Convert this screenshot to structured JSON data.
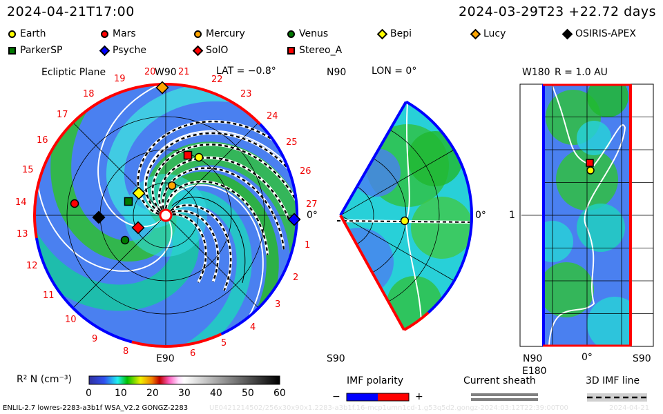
{
  "header": {
    "time": "2024-04-21T17:00",
    "run_info": "2024-03-29T23 +22.72 days"
  },
  "legend": [
    {
      "label": "Earth",
      "shape": "circle",
      "color": "#ffff00"
    },
    {
      "label": "Mars",
      "shape": "circle",
      "color": "#ff0000"
    },
    {
      "label": "Mercury",
      "shape": "circle",
      "color": "#ffa500"
    },
    {
      "label": "Venus",
      "shape": "circle",
      "color": "#007800"
    },
    {
      "label": "Bepi",
      "shape": "diamond",
      "color": "#ffff00"
    },
    {
      "label": "Lucy",
      "shape": "diamond",
      "color": "#ffa500"
    },
    {
      "label": "OSIRIS-APEX",
      "shape": "diamond",
      "color": "#000000"
    },
    {
      "label": "ParkerSP",
      "shape": "square",
      "color": "#007800"
    },
    {
      "label": "Psyche",
      "shape": "diamond",
      "color": "#0000ff"
    },
    {
      "label": "SolO",
      "shape": "diamond",
      "color": "#ff0000"
    },
    {
      "label": "Stereo_A",
      "shape": "square",
      "color": "#ff0000"
    }
  ],
  "ecliptic": {
    "title": "Ecliptic Plane",
    "top_label": "W90",
    "bottom_label": "E90",
    "lat": "LAT = −0.8°",
    "right_label": "0°",
    "carrington_days": [
      "19",
      "20",
      "21",
      "22",
      "23",
      "24",
      "25",
      "26",
      "27",
      "1",
      "2",
      "3",
      "4",
      "5",
      "6",
      "8",
      "9",
      "10",
      "11",
      "12",
      "13",
      "14",
      "15",
      "16",
      "17",
      "18"
    ]
  },
  "meridional": {
    "top_label": "N90",
    "lon": "LON = 0°",
    "right_label": "0°",
    "bottom_label": "S90"
  },
  "radial": {
    "top_label": "W180",
    "r": "R = 1.0 AU",
    "mid_label": "1",
    "bottom_label": "E180",
    "x_labels": [
      "N90",
      "0°",
      "S90"
    ]
  },
  "colorbar": {
    "label": "R² N (cm⁻³)",
    "ticks": [
      "0",
      "10",
      "20",
      "30",
      "40",
      "50",
      "60"
    ],
    "range": [
      0,
      60
    ]
  },
  "imf": {
    "label": "IMF polarity",
    "minus": "−",
    "plus": "+",
    "neg_color": "#0000ff",
    "pos_color": "#ff0000"
  },
  "sheath": {
    "label": "Current sheath"
  },
  "imf_line": {
    "label": "3D IMF line"
  },
  "footer": {
    "version": "ENLIL-2.7 lowres-2283-a3b1f WSA_V2.2 GONGZ-2283",
    "run_id": "UE0421214502/256x30x90x1.2283-a3b1f.16-mcp1umn1cd-1.g53q5d2.gongz-2024:03:12T22:39:00T00",
    "date": "2024-04-21"
  }
}
